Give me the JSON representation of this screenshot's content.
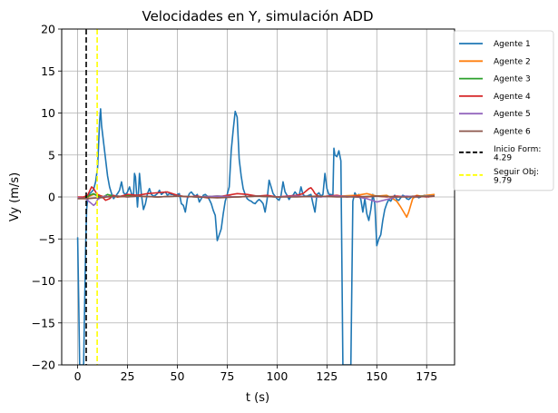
{
  "chart_data": {
    "type": "line",
    "title": "Velocidades en Y, simulación ADD",
    "xlabel": "t (s)",
    "ylabel": "Vy (m/s)",
    "xlim": [
      -8,
      189
    ],
    "ylim": [
      -20,
      20
    ],
    "xticks": [
      0,
      25,
      50,
      75,
      100,
      125,
      150,
      175
    ],
    "yticks": [
      -20,
      -15,
      -10,
      -5,
      0,
      5,
      10,
      15,
      20
    ],
    "xtick_labels": [
      "0",
      "25",
      "50",
      "75",
      "100",
      "125",
      "150",
      "175"
    ],
    "ytick_labels": [
      "−20",
      "−15",
      "−10",
      "−5",
      "0",
      "5",
      "10",
      "15",
      "20"
    ],
    "grid": true,
    "legend_position": "outside upper right",
    "series": [
      {
        "name": "Agente 1",
        "color": "#1f77b4",
        "x": [
          0,
          0.5,
          1,
          1.5,
          2,
          3,
          4,
          4.5,
          5,
          6,
          7,
          8,
          9,
          10,
          11,
          11.5,
          12,
          13,
          14,
          15,
          16,
          17,
          18,
          19,
          20,
          21,
          22,
          23,
          24,
          25,
          26,
          27,
          28,
          28.5,
          29,
          30,
          30.5,
          31,
          32,
          33,
          34,
          35,
          36,
          37,
          38,
          39,
          40,
          41,
          42,
          43,
          44,
          45,
          46,
          47,
          48,
          49,
          50,
          51,
          52,
          53,
          54,
          55,
          56,
          57,
          58,
          59,
          60,
          61,
          62,
          63,
          64,
          65,
          66,
          67,
          68,
          69,
          70,
          71,
          72,
          73,
          74,
          75,
          76,
          77,
          78,
          79,
          80,
          81,
          82,
          83,
          84,
          85,
          86,
          87,
          88,
          89,
          90,
          91,
          92,
          93,
          94,
          95,
          96,
          97,
          98,
          99,
          100,
          101,
          102,
          103,
          104,
          105,
          106,
          107,
          108,
          109,
          110,
          111,
          112,
          113,
          114,
          115,
          116,
          117,
          118,
          119,
          120,
          121,
          122,
          123,
          124,
          125,
          126,
          127,
          128,
          128.5,
          129,
          130,
          131,
          132,
          133,
          134,
          135,
          136,
          137,
          138,
          139,
          140,
          141,
          142,
          143,
          144,
          145,
          146,
          147,
          148,
          149,
          150,
          151,
          152,
          153,
          154,
          155,
          156,
          157,
          158,
          159,
          160,
          161,
          162,
          163,
          164,
          165,
          166,
          167,
          168,
          169,
          170,
          171,
          172,
          173,
          174,
          175,
          176,
          177,
          178,
          179
        ],
        "y": [
          -4.8,
          -12,
          -20,
          -20,
          -20,
          -20,
          -6,
          -1.5,
          -0.3,
          0.4,
          0.6,
          0.9,
          1.8,
          3.5,
          9.0,
          10.5,
          8.5,
          6.5,
          4.5,
          2.5,
          1.2,
          0.4,
          -0.2,
          0.1,
          0.4,
          0.8,
          1.8,
          0.5,
          0.3,
          0.6,
          1.2,
          0.4,
          0.1,
          2.8,
          2.4,
          -1.2,
          0.6,
          2.8,
          0.2,
          -1.5,
          -0.8,
          0.4,
          1.0,
          0.3,
          0.1,
          0.2,
          0.4,
          0.8,
          0.3,
          0.5,
          0.6,
          0.2,
          0.4,
          0.3,
          0.3,
          0.1,
          0.3,
          0.4,
          -0.8,
          -1.0,
          -1.8,
          -0.2,
          0.4,
          0.6,
          0.3,
          0.1,
          0.3,
          -0.6,
          -0.2,
          0.2,
          0.3,
          0.1,
          -0.3,
          -0.8,
          -1.6,
          -2.2,
          -5.2,
          -4.5,
          -3.8,
          -2.0,
          -0.5,
          0.3,
          1.2,
          5.5,
          8.0,
          10.2,
          9.5,
          4.5,
          2.5,
          1.0,
          0.3,
          -0.2,
          -0.4,
          -0.5,
          -0.7,
          -0.8,
          -0.5,
          -0.3,
          -0.5,
          -0.8,
          -1.8,
          -0.3,
          2.0,
          1.2,
          0.4,
          0.1,
          -0.2,
          -0.4,
          0.2,
          1.8,
          0.6,
          0.2,
          -0.3,
          0.1,
          0.2,
          0.6,
          0.3,
          0.1,
          1.2,
          0.3,
          0.1,
          0.1,
          0.2,
          0.3,
          -0.8,
          -1.8,
          0.3,
          0.5,
          0.1,
          0.3,
          2.8,
          1.0,
          0.3,
          0.3,
          0.2,
          5.8,
          5.0,
          4.8,
          5.5,
          4.3,
          -20,
          -20,
          -20,
          -20,
          -20,
          -0.5,
          0.5,
          0.1,
          0.3,
          -0.3,
          -1.8,
          -0.2,
          -2.0,
          -2.8,
          -1.5,
          0.3,
          -0.8,
          -5.8,
          -5.0,
          -4.5,
          -2.8,
          -1.5,
          -0.8,
          -0.3,
          -0.5,
          -0.1,
          0.2,
          -0.3,
          -0.4,
          -0.1,
          0.2,
          0.1,
          -0.2,
          -0.3,
          -0.1,
          0.1,
          0.0,
          0.1,
          -0.1,
          0.0,
          0.1,
          0.2,
          0.1,
          0.0,
          0.1,
          0.2,
          0.3
        ]
      },
      {
        "name": "Agente 2",
        "color": "#ff7f0e",
        "x": [
          0,
          4,
          6,
          8,
          10,
          12,
          14,
          16,
          20,
          30,
          40,
          50,
          60,
          70,
          80,
          90,
          100,
          110,
          120,
          130,
          140,
          145,
          150,
          155,
          158,
          160,
          162,
          164,
          165,
          166,
          167,
          168,
          170,
          172,
          175,
          179
        ],
        "y": [
          -0.2,
          -0.2,
          0.1,
          0.3,
          0.2,
          0.1,
          0.0,
          0.1,
          0.0,
          0.1,
          0.0,
          0.1,
          0.0,
          0.1,
          0.0,
          0.1,
          0.0,
          0.1,
          0.0,
          0.1,
          0.2,
          0.4,
          0.1,
          0.2,
          -0.2,
          -0.5,
          -1.2,
          -2.0,
          -2.4,
          -1.8,
          -1.0,
          -0.2,
          0.2,
          0.1,
          0.2,
          0.3
        ]
      },
      {
        "name": "Agente 3",
        "color": "#2ca02c",
        "x": [
          0,
          4,
          6,
          8,
          10,
          12,
          15,
          18,
          20,
          25,
          30,
          40,
          50,
          60,
          70,
          80,
          90,
          100,
          110,
          120,
          130,
          140,
          150,
          160,
          170,
          179
        ],
        "y": [
          -0.1,
          -0.1,
          0.2,
          0.4,
          0.1,
          -0.1,
          0.3,
          0.1,
          0.0,
          0.2,
          0.1,
          0.0,
          0.1,
          0.0,
          0.1,
          0.0,
          0.1,
          0.0,
          0.1,
          0.0,
          0.1,
          0.0,
          0.1,
          0.0,
          0.1,
          0.1
        ]
      },
      {
        "name": "Agente 4",
        "color": "#d62728",
        "x": [
          0,
          3,
          5,
          7,
          8,
          9,
          10,
          12,
          14,
          16,
          18,
          20,
          25,
          30,
          35,
          40,
          45,
          50,
          55,
          60,
          65,
          70,
          75,
          80,
          85,
          90,
          95,
          100,
          105,
          110,
          113,
          115,
          116,
          117,
          118,
          119,
          120,
          122,
          125,
          130,
          135,
          140,
          145,
          150,
          155,
          160,
          165,
          170,
          175,
          179
        ],
        "y": [
          0.0,
          0.0,
          0.2,
          1.2,
          1.0,
          0.6,
          0.3,
          0.1,
          -0.4,
          -0.2,
          0.2,
          0.0,
          0.3,
          0.2,
          0.4,
          0.5,
          0.6,
          0.2,
          0.0,
          0.1,
          -0.1,
          0.0,
          0.2,
          0.4,
          0.3,
          0.1,
          0.2,
          0.0,
          0.1,
          0.2,
          0.4,
          0.8,
          1.0,
          1.1,
          0.8,
          0.4,
          0.2,
          0.0,
          0.1,
          0.2,
          0.0,
          0.1,
          0.0,
          0.1,
          0.0,
          0.1,
          0.0,
          0.1,
          0.0,
          0.1
        ]
      },
      {
        "name": "Agente 5",
        "color": "#9467bd",
        "x": [
          0,
          4,
          6,
          8,
          9,
          10,
          12,
          14,
          16,
          20,
          25,
          30,
          40,
          50,
          60,
          70,
          80,
          90,
          100,
          110,
          120,
          130,
          140,
          145,
          150,
          155,
          160,
          165,
          170,
          175,
          179
        ],
        "y": [
          -0.1,
          -0.2,
          -0.6,
          -1.0,
          -0.8,
          -0.3,
          0.0,
          0.1,
          0.0,
          0.1,
          0.0,
          0.1,
          0.0,
          0.1,
          0.0,
          0.1,
          0.0,
          0.1,
          0.0,
          0.1,
          0.0,
          0.1,
          0.0,
          -0.2,
          -0.6,
          -0.3,
          0.0,
          0.1,
          0.0,
          0.1,
          0.1
        ]
      },
      {
        "name": "Agente 6",
        "color": "#8c564b",
        "x": [
          0,
          5,
          10,
          15,
          20,
          25,
          30,
          40,
          50,
          60,
          70,
          80,
          90,
          100,
          110,
          120,
          130,
          140,
          150,
          160,
          170,
          179
        ],
        "y": [
          -0.2,
          -0.2,
          -0.1,
          0.0,
          0.1,
          0.0,
          0.1,
          0.0,
          0.1,
          0.0,
          -0.1,
          0.0,
          0.1,
          0.0,
          0.0,
          0.1,
          0.0,
          0.0,
          0.1,
          0.0,
          0.0,
          0.1
        ]
      }
    ],
    "vlines": [
      {
        "name": "Inicio Form: 4.29",
        "label_lines": [
          "Inicio Form:",
          "4.29"
        ],
        "x": 4.29,
        "color": "#000000",
        "style": "dashed"
      },
      {
        "name": "Seguir Obj: 9.79",
        "label_lines": [
          "Seguir Obj:",
          "9.79"
        ],
        "x": 9.79,
        "color": "#ffff00",
        "style": "dashed"
      }
    ]
  }
}
